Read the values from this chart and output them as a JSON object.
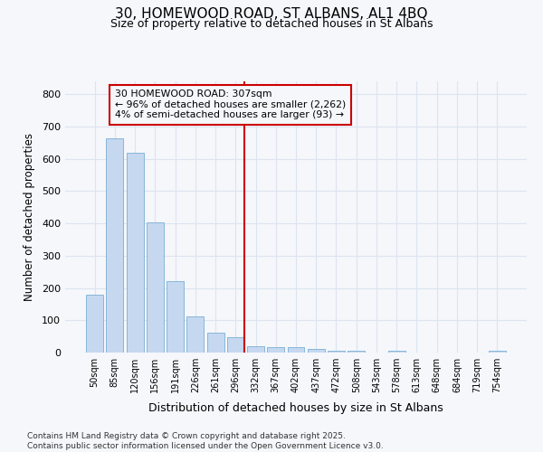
{
  "title_line1": "30, HOMEWOOD ROAD, ST ALBANS, AL1 4BQ",
  "title_line2": "Size of property relative to detached houses in St Albans",
  "xlabel": "Distribution of detached houses by size in St Albans",
  "ylabel": "Number of detached properties",
  "categories": [
    "50sqm",
    "85sqm",
    "120sqm",
    "156sqm",
    "191sqm",
    "226sqm",
    "261sqm",
    "296sqm",
    "332sqm",
    "367sqm",
    "402sqm",
    "437sqm",
    "472sqm",
    "508sqm",
    "543sqm",
    "578sqm",
    "613sqm",
    "648sqm",
    "684sqm",
    "719sqm",
    "754sqm"
  ],
  "values": [
    178,
    665,
    620,
    402,
    220,
    113,
    62,
    48,
    20,
    16,
    16,
    12,
    5,
    7,
    1,
    6,
    1,
    0,
    0,
    0,
    5
  ],
  "bar_color": "#c5d8f0",
  "bar_edge_color": "#7aaed4",
  "vline_x_index": 7,
  "vline_color": "#cc0000",
  "annotation_title": "30 HOMEWOOD ROAD: 307sqm",
  "annotation_line2": "← 96% of detached houses are smaller (2,262)",
  "annotation_line3": "4% of semi-detached houses are larger (93) →",
  "annotation_box_color": "#cc0000",
  "ylim": [
    0,
    840
  ],
  "yticks": [
    0,
    100,
    200,
    300,
    400,
    500,
    600,
    700,
    800
  ],
  "background_color": "#f5f7fb",
  "grid_color": "#dde4f0",
  "footer_line1": "Contains HM Land Registry data © Crown copyright and database right 2025.",
  "footer_line2": "Contains public sector information licensed under the Open Government Licence v3.0."
}
